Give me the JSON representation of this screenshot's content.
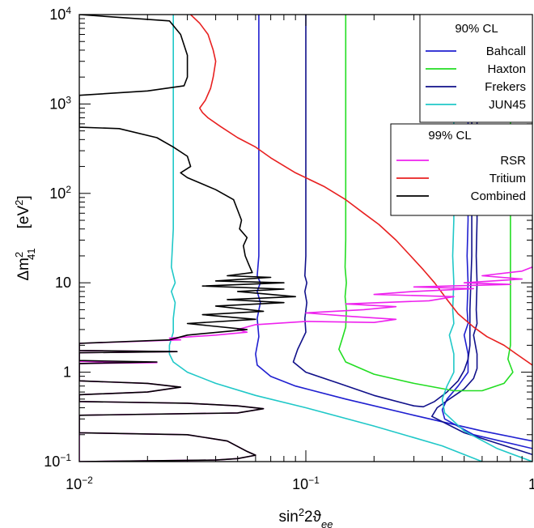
{
  "chart_data": {
    "type": "line",
    "xlabel_main": "sin",
    "xlabel_sup": "2",
    "xlabel_mid": "2ϑ",
    "xlabel_sub": "ee",
    "ylabel_main": "Δm",
    "ylabel_sup": "2",
    "ylabel_sub": "41",
    "ylabel_unit_open": "[eV",
    "ylabel_unit_sup": "2",
    "ylabel_unit_close": "]",
    "x_scale": "log",
    "y_scale": "log",
    "xlim": [
      0.01,
      1
    ],
    "ylim": [
      0.1,
      10000
    ],
    "x_ticks": [
      {
        "value": 0.01,
        "base": "10",
        "exp": "−2"
      },
      {
        "value": 0.1,
        "base": "10",
        "exp": "−1"
      },
      {
        "value": 1,
        "base": "1",
        "exp": ""
      }
    ],
    "y_ticks": [
      {
        "value": 0.1,
        "base": "10",
        "exp": "−1"
      },
      {
        "value": 1,
        "base": "1",
        "exp": ""
      },
      {
        "value": 10,
        "base": "10",
        "exp": ""
      },
      {
        "value": 100,
        "base": "10",
        "exp": "2"
      },
      {
        "value": 1000,
        "base": "10",
        "exp": "3"
      },
      {
        "value": 10000,
        "base": "10",
        "exp": "4"
      }
    ],
    "grid": false,
    "legends": [
      {
        "title": "90% CL",
        "placement": "top-right",
        "entries": [
          {
            "name": "Bahcall",
            "color": "#1f1fd0"
          },
          {
            "name": "Haxton",
            "color": "#22dd22"
          },
          {
            "name": "Frekers",
            "color": "#10108a"
          },
          {
            "name": "JUN45",
            "color": "#20c8c8"
          }
        ]
      },
      {
        "title": "99% CL",
        "placement": "upper-right",
        "entries": [
          {
            "name": "RSR",
            "color": "#ee22ee"
          },
          {
            "name": "Tritium",
            "color": "#e82020"
          },
          {
            "name": "Combined",
            "color": "#000000"
          }
        ]
      }
    ],
    "series": [
      {
        "name": "Bahcall",
        "color": "#1f1fd0",
        "points": [
          [
            0.062,
            10000
          ],
          [
            0.062,
            20
          ],
          [
            0.061,
            12
          ],
          [
            0.063,
            10
          ],
          [
            0.061,
            8
          ],
          [
            0.063,
            6
          ],
          [
            0.061,
            4
          ],
          [
            0.062,
            2.5
          ],
          [
            0.06,
            1.6
          ],
          [
            0.061,
            1.2
          ],
          [
            0.07,
            0.9
          ],
          [
            0.09,
            0.7
          ],
          [
            0.15,
            0.5
          ],
          [
            0.3,
            0.33
          ],
          [
            0.6,
            0.22
          ],
          [
            1.0,
            0.17
          ]
        ]
      },
      {
        "name": "Bahcall",
        "color": "#1f1fd0",
        "points": [
          [
            0.52,
            10000
          ],
          [
            0.52,
            50
          ],
          [
            0.515,
            20
          ],
          [
            0.52,
            10
          ],
          [
            0.515,
            5
          ],
          [
            0.52,
            3.5
          ],
          [
            0.5,
            2.6
          ],
          [
            0.52,
            1.6
          ],
          [
            0.52,
            1.0
          ],
          [
            0.47,
            0.7
          ],
          [
            0.42,
            0.5
          ],
          [
            0.4,
            0.38
          ],
          [
            0.41,
            0.3
          ],
          [
            0.55,
            0.2
          ],
          [
            1.0,
            0.14
          ]
        ]
      },
      {
        "name": "Frekers",
        "color": "#10108a",
        "points": [
          [
            0.1,
            10000
          ],
          [
            0.1,
            20
          ],
          [
            0.099,
            12
          ],
          [
            0.101,
            10
          ],
          [
            0.099,
            8
          ],
          [
            0.101,
            6
          ],
          [
            0.099,
            4
          ],
          [
            0.1,
            2.8
          ],
          [
            0.092,
            1.8
          ],
          [
            0.088,
            1.3
          ],
          [
            0.1,
            1.0
          ],
          [
            0.14,
            0.75
          ],
          [
            0.2,
            0.55
          ],
          [
            0.3,
            0.42
          ],
          [
            0.33,
            0.41
          ],
          [
            0.37,
            0.47
          ],
          [
            0.42,
            0.6
          ],
          [
            0.47,
            0.8
          ],
          [
            0.5,
            1.05
          ],
          [
            0.52,
            1.4
          ],
          [
            0.53,
            2.0
          ],
          [
            0.53,
            5
          ],
          [
            0.54,
            20
          ],
          [
            0.54,
            100
          ],
          [
            0.54,
            10000
          ]
        ]
      },
      {
        "name": "Frekers",
        "color": "#10108a",
        "points": [
          [
            0.57,
            10000
          ],
          [
            0.57,
            50
          ],
          [
            0.565,
            20
          ],
          [
            0.57,
            10
          ],
          [
            0.565,
            5
          ],
          [
            0.57,
            3.5
          ],
          [
            0.55,
            2.6
          ],
          [
            0.57,
            1.6
          ],
          [
            0.57,
            1.1
          ],
          [
            0.55,
            0.85
          ],
          [
            0.5,
            0.65
          ],
          [
            0.43,
            0.5
          ],
          [
            0.38,
            0.4
          ],
          [
            0.36,
            0.32
          ],
          [
            0.5,
            0.21
          ],
          [
            1.0,
            0.12
          ]
        ]
      },
      {
        "name": "Haxton",
        "color": "#22dd22",
        "points": [
          [
            0.15,
            10000
          ],
          [
            0.15,
            30
          ],
          [
            0.149,
            15
          ],
          [
            0.151,
            10
          ],
          [
            0.149,
            7
          ],
          [
            0.151,
            5
          ],
          [
            0.15,
            3.2
          ],
          [
            0.145,
            2.4
          ],
          [
            0.14,
            1.8
          ],
          [
            0.15,
            1.3
          ],
          [
            0.2,
            0.95
          ],
          [
            0.3,
            0.75
          ],
          [
            0.45,
            0.62
          ],
          [
            0.6,
            0.62
          ],
          [
            0.75,
            0.75
          ],
          [
            0.82,
            1.0
          ],
          [
            0.78,
            1.4
          ],
          [
            0.8,
            2.0
          ],
          [
            0.8,
            5
          ],
          [
            0.8,
            15
          ],
          [
            0.8,
            100
          ],
          [
            0.8,
            10000
          ]
        ]
      },
      {
        "name": "JUN45",
        "color": "#20c8c8",
        "points": [
          [
            0.026,
            10000
          ],
          [
            0.026,
            40
          ],
          [
            0.0255,
            15
          ],
          [
            0.0265,
            10
          ],
          [
            0.0255,
            8
          ],
          [
            0.0265,
            6
          ],
          [
            0.026,
            4
          ],
          [
            0.026,
            2.8
          ],
          [
            0.025,
            2.0
          ],
          [
            0.025,
            1.6
          ],
          [
            0.026,
            1.3
          ],
          [
            0.03,
            1.0
          ],
          [
            0.04,
            0.75
          ],
          [
            0.06,
            0.55
          ],
          [
            0.1,
            0.4
          ],
          [
            0.2,
            0.25
          ],
          [
            0.4,
            0.15
          ],
          [
            0.6,
            0.1
          ]
        ]
      },
      {
        "name": "JUN45",
        "color": "#20c8c8",
        "points": [
          [
            0.45,
            10000
          ],
          [
            0.45,
            50
          ],
          [
            0.445,
            20
          ],
          [
            0.45,
            10
          ],
          [
            0.445,
            5
          ],
          [
            0.45,
            3.5
          ],
          [
            0.43,
            2.6
          ],
          [
            0.45,
            1.6
          ],
          [
            0.45,
            1.0
          ],
          [
            0.42,
            0.7
          ],
          [
            0.4,
            0.5
          ],
          [
            0.41,
            0.35
          ],
          [
            0.5,
            0.22
          ],
          [
            0.7,
            0.14
          ],
          [
            1.0,
            0.1
          ]
        ]
      },
      {
        "name": "Tritium",
        "color": "#e82020",
        "points": [
          [
            0.031,
            10000
          ],
          [
            0.034,
            8000
          ],
          [
            0.037,
            6000
          ],
          [
            0.039,
            4000
          ],
          [
            0.04,
            3000
          ],
          [
            0.039,
            2000
          ],
          [
            0.038,
            1500
          ],
          [
            0.036,
            1100
          ],
          [
            0.034,
            900
          ],
          [
            0.035,
            800
          ],
          [
            0.037,
            700
          ],
          [
            0.042,
            560
          ],
          [
            0.05,
            420
          ],
          [
            0.06,
            330
          ],
          [
            0.07,
            250
          ],
          [
            0.09,
            170
          ],
          [
            0.12,
            120
          ],
          [
            0.15,
            85
          ],
          [
            0.18,
            60
          ],
          [
            0.21,
            45
          ],
          [
            0.25,
            30
          ],
          [
            0.29,
            20
          ],
          [
            0.33,
            14
          ],
          [
            0.37,
            10
          ],
          [
            0.42,
            6.5
          ],
          [
            0.47,
            4.5
          ],
          [
            0.55,
            3.2
          ],
          [
            0.63,
            2.5
          ],
          [
            0.75,
            2.0
          ],
          [
            0.85,
            1.6
          ],
          [
            1.0,
            1.2
          ]
        ]
      },
      {
        "name": "RSR",
        "color": "#ee22ee",
        "points": [
          [
            0.01,
            0.21
          ],
          [
            0.03,
            0.2
          ],
          [
            0.045,
            0.17
          ],
          [
            0.055,
            0.13
          ],
          [
            0.06,
            0.118
          ],
          [
            0.05,
            0.108
          ],
          [
            0.04,
            0.104
          ],
          [
            0.01,
            0.1
          ],
          [
            0.01,
            0.33
          ],
          [
            0.05,
            0.35
          ],
          [
            0.065,
            0.39
          ],
          [
            0.05,
            0.42
          ],
          [
            0.03,
            0.45
          ],
          [
            0.01,
            0.47
          ],
          [
            0.01,
            0.56
          ],
          [
            0.02,
            0.6
          ],
          [
            0.028,
            0.68
          ],
          [
            0.02,
            0.75
          ],
          [
            0.01,
            0.8
          ],
          [
            0.01,
            1.25
          ],
          [
            0.022,
            1.28
          ],
          [
            0.01,
            1.32
          ],
          [
            0.01,
            1.65
          ],
          [
            0.027,
            1.7
          ],
          [
            0.01,
            1.75
          ],
          [
            0.01,
            2.1
          ],
          [
            0.028,
            2.3
          ],
          [
            0.025,
            2.4
          ],
          [
            0.04,
            2.6
          ],
          [
            0.055,
            2.8
          ],
          [
            0.05,
            3.0
          ],
          [
            0.06,
            3.4
          ],
          [
            0.1,
            3.7
          ],
          [
            0.2,
            3.6
          ],
          [
            0.25,
            3.9
          ],
          [
            0.16,
            4.2
          ],
          [
            0.1,
            4.6
          ],
          [
            0.18,
            5.0
          ],
          [
            0.25,
            5.4
          ],
          [
            0.15,
            5.8
          ],
          [
            0.35,
            6.3
          ],
          [
            0.45,
            7.0
          ],
          [
            0.2,
            7.4
          ],
          [
            0.3,
            8.0
          ],
          [
            0.55,
            8.6
          ],
          [
            0.3,
            9.0
          ],
          [
            0.8,
            9.6
          ],
          [
            0.5,
            10
          ],
          [
            0.9,
            11
          ],
          [
            0.6,
            12
          ],
          [
            0.9,
            13.5
          ],
          [
            1.0,
            15
          ]
        ]
      },
      {
        "name": "Combined",
        "color": "#000000",
        "points": [
          [
            0.01,
            10000
          ],
          [
            0.025,
            8500
          ],
          [
            0.028,
            6000
          ],
          [
            0.03,
            3500
          ],
          [
            0.03,
            2000
          ],
          [
            0.029,
            1600
          ],
          [
            0.02,
            1400
          ],
          [
            0.01,
            1250
          ],
          [
            0.01,
            550
          ],
          [
            0.015,
            530
          ],
          [
            0.022,
            420
          ],
          [
            0.026,
            330
          ],
          [
            0.03,
            260
          ],
          [
            0.031,
            200
          ],
          [
            0.028,
            170
          ],
          [
            0.03,
            150
          ],
          [
            0.04,
            110
          ],
          [
            0.048,
            85
          ],
          [
            0.05,
            65
          ],
          [
            0.052,
            50
          ],
          [
            0.051,
            40
          ],
          [
            0.055,
            32
          ],
          [
            0.053,
            26
          ],
          [
            0.054,
            20
          ],
          [
            0.056,
            16
          ],
          [
            0.058,
            13
          ],
          [
            0.045,
            12
          ],
          [
            0.07,
            11.5
          ],
          [
            0.04,
            10.5
          ],
          [
            0.08,
            10
          ],
          [
            0.035,
            9.2
          ],
          [
            0.08,
            8.5
          ],
          [
            0.05,
            8
          ],
          [
            0.09,
            7
          ],
          [
            0.045,
            6.5
          ],
          [
            0.08,
            6
          ],
          [
            0.04,
            5.5
          ],
          [
            0.065,
            4.8
          ],
          [
            0.035,
            4.4
          ],
          [
            0.06,
            3.9
          ],
          [
            0.03,
            3.5
          ],
          [
            0.055,
            3.0
          ],
          [
            0.03,
            2.6
          ],
          [
            0.025,
            2.3
          ],
          [
            0.01,
            2.1
          ],
          [
            0.01,
            1.75
          ],
          [
            0.027,
            1.7
          ],
          [
            0.01,
            1.65
          ],
          [
            0.01,
            1.35
          ],
          [
            0.022,
            1.3
          ],
          [
            0.01,
            1.25
          ],
          [
            0.01,
            0.8
          ],
          [
            0.02,
            0.75
          ],
          [
            0.028,
            0.68
          ],
          [
            0.02,
            0.6
          ],
          [
            0.01,
            0.56
          ],
          [
            0.01,
            0.47
          ],
          [
            0.03,
            0.45
          ],
          [
            0.05,
            0.42
          ],
          [
            0.065,
            0.39
          ],
          [
            0.05,
            0.35
          ],
          [
            0.01,
            0.33
          ],
          [
            0.01,
            0.21
          ],
          [
            0.03,
            0.2
          ],
          [
            0.045,
            0.17
          ],
          [
            0.055,
            0.13
          ],
          [
            0.06,
            0.118
          ],
          [
            0.05,
            0.108
          ],
          [
            0.04,
            0.104
          ],
          [
            0.01,
            0.1
          ]
        ]
      }
    ]
  }
}
